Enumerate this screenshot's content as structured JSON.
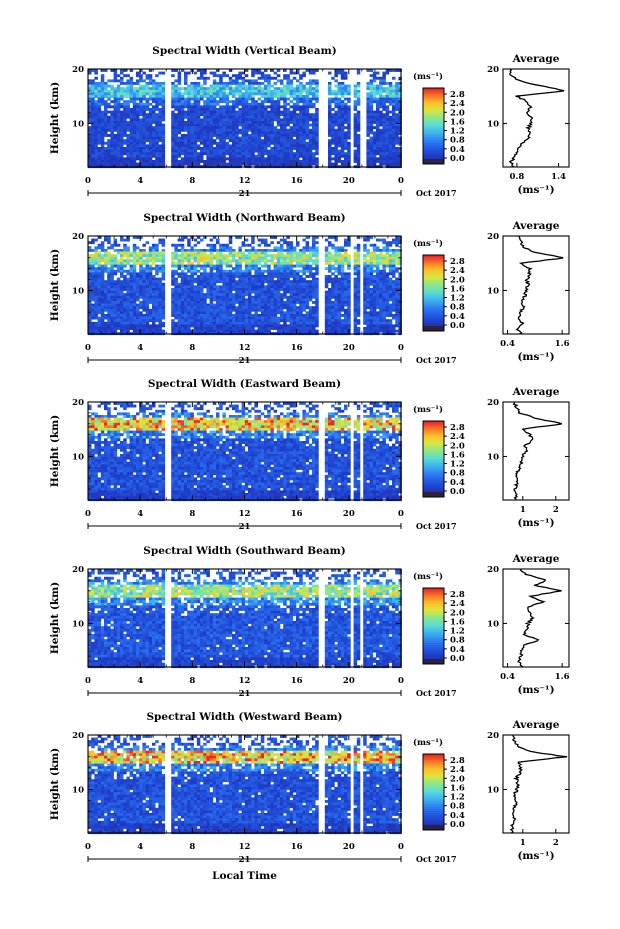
{
  "figure": {
    "x_axis_label": "Local Time",
    "date_label": "Oct 2017",
    "day_label": "21",
    "y_axis_label": "Height (km)",
    "colorbar_unit": "(ms⁻¹)",
    "average_title": "Average",
    "average_xlabel": "(ms⁻¹)"
  },
  "chart_data": [
    {
      "type": "heatmap",
      "title": "Spectral Width (Vertical Beam)",
      "x_ticks": [
        "0",
        "4",
        "8",
        "12",
        "16",
        "20",
        "0"
      ],
      "xlim": [
        0,
        24
      ],
      "y_ticks": [
        "10",
        "20"
      ],
      "ylim": [
        2,
        20
      ],
      "colorbar_ticks": [
        "2.8",
        "2.4",
        "2.0",
        "1.6",
        "1.2",
        "0.8",
        "0.4",
        "0.0"
      ],
      "gaps_hours": [
        [
          5.8,
          6.2
        ],
        [
          17.6,
          18.2
        ],
        [
          19.9,
          20.3
        ],
        [
          20.8,
          21.3
        ]
      ],
      "average": {
        "x_ticks": [
          "0.8",
          "1.4"
        ],
        "xlim": [
          0.6,
          1.55
        ],
        "y_ticks": [
          "10",
          "20"
        ],
        "heights": [
          2,
          3,
          4,
          5,
          6,
          7,
          8,
          9,
          10,
          11,
          12,
          13,
          14,
          15,
          16,
          17,
          18,
          19,
          20
        ],
        "values": [
          0.75,
          0.72,
          0.78,
          0.82,
          0.85,
          0.95,
          0.98,
          0.96,
          1.0,
          1.02,
          0.95,
          1.0,
          0.95,
          0.8,
          1.5,
          1.1,
          0.8,
          0.72,
          0.7
        ]
      },
      "field": {
        "base": 0.5,
        "peak_height": 16,
        "peak_value": 1.6
      }
    },
    {
      "type": "heatmap",
      "title": "Spectral Width (Northward Beam)",
      "x_ticks": [
        "0",
        "4",
        "8",
        "12",
        "16",
        "20",
        "0"
      ],
      "xlim": [
        0,
        24
      ],
      "y_ticks": [
        "10",
        "20"
      ],
      "ylim": [
        2,
        20
      ],
      "colorbar_ticks": [
        "2.8",
        "2.4",
        "2.0",
        "1.6",
        "1.2",
        "0.8",
        "0.4",
        "0.0"
      ],
      "gaps_hours": [
        [
          5.8,
          6.2
        ],
        [
          17.6,
          18.0
        ],
        [
          19.9,
          20.3
        ],
        [
          20.8,
          21.1
        ]
      ],
      "average": {
        "x_ticks": [
          "0.4",
          "1.6"
        ],
        "xlim": [
          0.3,
          1.75
        ],
        "y_ticks": [
          "10",
          "20"
        ],
        "heights": [
          2,
          3,
          4,
          5,
          6,
          7,
          8,
          9,
          10,
          11,
          12,
          13,
          14,
          15,
          16,
          17,
          18,
          19,
          20
        ],
        "values": [
          0.7,
          0.62,
          0.72,
          0.66,
          0.7,
          0.75,
          0.72,
          0.78,
          0.8,
          0.85,
          0.82,
          0.88,
          0.9,
          0.7,
          1.65,
          1.0,
          0.75,
          0.7,
          0.65
        ]
      },
      "field": {
        "base": 0.6,
        "peak_height": 16,
        "peak_value": 2.2
      }
    },
    {
      "type": "heatmap",
      "title": "Spectral Width (Eastward Beam)",
      "x_ticks": [
        "0",
        "4",
        "8",
        "12",
        "16",
        "20",
        "0"
      ],
      "xlim": [
        0,
        24
      ],
      "y_ticks": [
        "10",
        "20"
      ],
      "ylim": [
        2,
        20
      ],
      "colorbar_ticks": [
        "2.8",
        "2.4",
        "2.0",
        "1.6",
        "1.2",
        "0.8",
        "0.4",
        "0.0"
      ],
      "gaps_hours": [
        [
          5.8,
          6.2
        ],
        [
          17.6,
          18.0
        ],
        [
          19.9,
          20.3
        ],
        [
          20.8,
          21.1
        ]
      ],
      "average": {
        "x_ticks": [
          "1",
          "2"
        ],
        "xlim": [
          0.4,
          2.4
        ],
        "y_ticks": [
          "10",
          "20"
        ],
        "heights": [
          2,
          3,
          4,
          5,
          6,
          7,
          8,
          9,
          10,
          11,
          12,
          13,
          14,
          15,
          16,
          17,
          18,
          19,
          20
        ],
        "values": [
          0.8,
          0.78,
          0.75,
          0.82,
          0.8,
          0.85,
          0.9,
          0.95,
          1.0,
          1.1,
          1.05,
          1.3,
          1.2,
          1.0,
          2.2,
          1.4,
          0.9,
          0.8,
          0.75
        ]
      },
      "field": {
        "base": 0.6,
        "peak_height": 16,
        "peak_value": 2.8
      }
    },
    {
      "type": "heatmap",
      "title": "Spectral Width (Southward Beam)",
      "x_ticks": [
        "0",
        "4",
        "8",
        "12",
        "16",
        "20",
        "0"
      ],
      "xlim": [
        0,
        24
      ],
      "y_ticks": [
        "10",
        "20"
      ],
      "ylim": [
        2,
        20
      ],
      "colorbar_ticks": [
        "2.8",
        "2.4",
        "2.0",
        "1.6",
        "1.2",
        "0.8",
        "0.4",
        "0.0"
      ],
      "gaps_hours": [
        [
          5.8,
          6.2
        ],
        [
          17.6,
          18.0
        ],
        [
          19.9,
          20.3
        ],
        [
          20.8,
          21.1
        ]
      ],
      "average": {
        "x_ticks": [
          "0.4",
          "1.6"
        ],
        "xlim": [
          0.3,
          1.75
        ],
        "y_ticks": [
          "10",
          "20"
        ],
        "heights": [
          2,
          3,
          4,
          5,
          6,
          7,
          8,
          9,
          10,
          11,
          12,
          13,
          14,
          15,
          16,
          17,
          18,
          19,
          20
        ],
        "values": [
          0.7,
          0.65,
          0.7,
          0.72,
          0.78,
          1.1,
          0.75,
          0.82,
          0.85,
          0.95,
          0.9,
          0.85,
          1.2,
          0.9,
          1.6,
          1.0,
          1.25,
          0.8,
          0.7
        ]
      },
      "field": {
        "base": 0.65,
        "peak_height": 16,
        "peak_value": 2.2
      }
    },
    {
      "type": "heatmap",
      "title": "Spectral Width (Westward Beam)",
      "x_ticks": [
        "0",
        "4",
        "8",
        "12",
        "16",
        "20",
        "0"
      ],
      "xlim": [
        0,
        24
      ],
      "y_ticks": [
        "10",
        "20"
      ],
      "ylim": [
        2,
        20
      ],
      "colorbar_ticks": [
        "2.8",
        "2.4",
        "2.0",
        "1.6",
        "1.2",
        "0.8",
        "0.4",
        "0.0"
      ],
      "gaps_hours": [
        [
          5.8,
          6.2
        ],
        [
          17.6,
          18.0
        ],
        [
          19.9,
          20.3
        ],
        [
          20.8,
          21.1
        ]
      ],
      "average": {
        "x_ticks": [
          "1",
          "2"
        ],
        "xlim": [
          0.4,
          2.4
        ],
        "y_ticks": [
          "10",
          "20"
        ],
        "heights": [
          2,
          3,
          4,
          5,
          6,
          7,
          8,
          9,
          10,
          11,
          12,
          13,
          14,
          15,
          16,
          17,
          18,
          19,
          20
        ],
        "values": [
          0.7,
          0.68,
          0.72,
          0.75,
          0.72,
          0.78,
          0.8,
          0.75,
          0.82,
          0.85,
          0.8,
          0.9,
          0.95,
          0.9,
          2.3,
          1.2,
          0.85,
          0.75,
          0.7
        ]
      },
      "field": {
        "base": 0.6,
        "peak_height": 16,
        "peak_value": 2.8
      }
    }
  ]
}
